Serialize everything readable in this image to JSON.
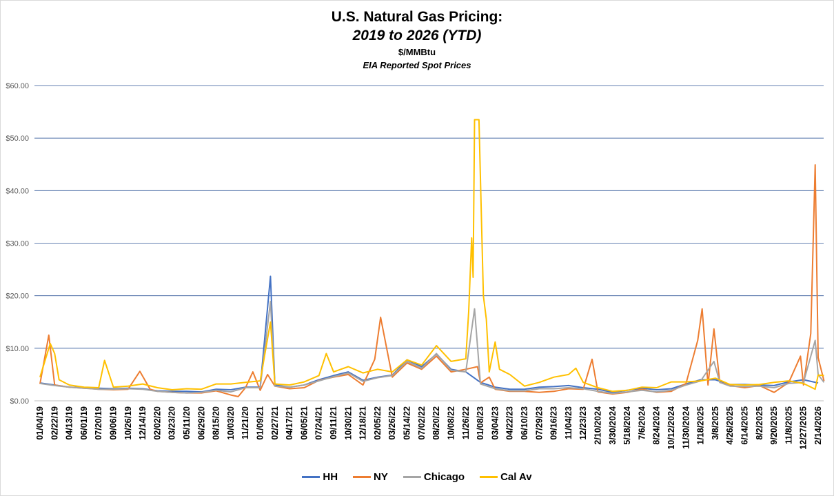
{
  "title": "U.S. Natural Gas Pricing:",
  "subtitle": "2019 to 2026 (YTD)",
  "unit": "$/MMBtu",
  "source": "EIA Reported Spot Prices",
  "chart_data": {
    "type": "line",
    "ylim": [
      0,
      60
    ],
    "yticks": [
      "$0.00",
      "$10.00",
      "$20.00",
      "$30.00",
      "$40.00",
      "$50.00",
      "$60.00"
    ],
    "grid": true,
    "legend_position": "bottom",
    "xticks": [
      "01/04/19",
      "02/22/19",
      "04/13/19",
      "06/01/19",
      "07/20/19",
      "09/06/19",
      "10/26/19",
      "12/14/19",
      "02/02/20",
      "03/23/20",
      "05/11/20",
      "06/29/20",
      "08/15/20",
      "10/03/20",
      "11/21/20",
      "01/09/21",
      "02/27/21",
      "04/17/21",
      "06/05/21",
      "07/24/21",
      "09/11/21",
      "10/30/21",
      "12/18/21",
      "02/05/22",
      "03/26/22",
      "05/14/22",
      "07/02/22",
      "08/20/22",
      "10/08/22",
      "11/26/22",
      "01/08/23",
      "03/04/23",
      "04/22/23",
      "06/10/23",
      "07/29/23",
      "09/16/23",
      "11/04/23",
      "12/23/23",
      "2/10/2024",
      "3/30/2024",
      "5/18/2024",
      "7/6/2024",
      "8/24/2024",
      "10/12/2024",
      "11/30/2024",
      "1/18/2025",
      "3/8/2025",
      "4/26/2025",
      "6/14/2025",
      "8/2/2025",
      "9/20/2025",
      "11/8/2025",
      "12/27/2025",
      "2/14/2026"
    ],
    "series": [
      {
        "name": "HH",
        "color": "#4472c4",
        "points": [
          [
            0,
            3.4
          ],
          [
            1,
            3.0
          ],
          [
            2,
            2.6
          ],
          [
            3,
            2.5
          ],
          [
            4,
            2.4
          ],
          [
            5,
            2.3
          ],
          [
            6,
            2.4
          ],
          [
            7,
            2.3
          ],
          [
            8,
            1.9
          ],
          [
            9,
            1.8
          ],
          [
            10,
            1.8
          ],
          [
            11,
            1.7
          ],
          [
            12,
            2.2
          ],
          [
            13,
            2.1
          ],
          [
            14,
            2.6
          ],
          [
            15,
            2.6
          ],
          [
            15.7,
            23.7
          ],
          [
            16,
            3.0
          ],
          [
            17,
            2.6
          ],
          [
            18,
            3.0
          ],
          [
            19,
            4.0
          ],
          [
            20,
            4.8
          ],
          [
            21,
            5.5
          ],
          [
            22,
            3.9
          ],
          [
            23,
            4.5
          ],
          [
            24,
            4.9
          ],
          [
            25,
            7.8
          ],
          [
            26,
            6.5
          ],
          [
            27,
            8.9
          ],
          [
            28,
            6.0
          ],
          [
            29,
            5.5
          ],
          [
            30,
            3.5
          ],
          [
            31,
            2.6
          ],
          [
            32,
            2.2
          ],
          [
            33,
            2.2
          ],
          [
            34,
            2.6
          ],
          [
            35,
            2.7
          ],
          [
            36,
            2.9
          ],
          [
            37,
            2.5
          ],
          [
            38,
            2.2
          ],
          [
            39,
            1.6
          ],
          [
            40,
            2.0
          ],
          [
            41,
            2.4
          ],
          [
            42,
            2.1
          ],
          [
            43,
            2.3
          ],
          [
            44,
            3.2
          ],
          [
            45,
            4.0
          ],
          [
            46,
            4.0
          ],
          [
            47,
            3.1
          ],
          [
            48,
            3.1
          ],
          [
            49,
            3.0
          ],
          [
            50,
            2.9
          ],
          [
            51,
            3.6
          ],
          [
            52,
            4.0
          ],
          [
            53,
            3.4
          ]
        ]
      },
      {
        "name": "NY",
        "color": "#ed7d31",
        "points": [
          [
            0,
            3.2
          ],
          [
            0.6,
            12.5
          ],
          [
            1,
            3.0
          ],
          [
            2,
            2.6
          ],
          [
            3,
            2.4
          ],
          [
            4,
            2.2
          ],
          [
            5,
            2.1
          ],
          [
            6,
            2.2
          ],
          [
            6.8,
            5.6
          ],
          [
            7.5,
            2.2
          ],
          [
            8,
            1.8
          ],
          [
            9,
            1.6
          ],
          [
            10,
            1.5
          ],
          [
            11,
            1.5
          ],
          [
            12,
            1.9
          ],
          [
            13,
            1.1
          ],
          [
            13.5,
            0.8
          ],
          [
            14,
            2.5
          ],
          [
            14.5,
            5.5
          ],
          [
            15,
            2.0
          ],
          [
            15.5,
            5.0
          ],
          [
            16,
            2.8
          ],
          [
            17,
            2.3
          ],
          [
            18,
            2.5
          ],
          [
            19,
            3.9
          ],
          [
            20,
            4.5
          ],
          [
            21,
            5.0
          ],
          [
            22,
            3.0
          ],
          [
            22.8,
            7.9
          ],
          [
            23.2,
            15.9
          ],
          [
            24,
            4.5
          ],
          [
            25,
            7.2
          ],
          [
            26,
            6.0
          ],
          [
            27,
            8.5
          ],
          [
            28,
            5.5
          ],
          [
            29,
            6.0
          ],
          [
            29.8,
            6.5
          ],
          [
            30,
            3.4
          ],
          [
            30.6,
            4.5
          ],
          [
            31,
            2.2
          ],
          [
            32,
            1.8
          ],
          [
            33,
            1.8
          ],
          [
            34,
            1.6
          ],
          [
            35,
            1.8
          ],
          [
            36,
            2.3
          ],
          [
            37,
            2.2
          ],
          [
            37.6,
            7.9
          ],
          [
            38,
            1.7
          ],
          [
            39,
            1.3
          ],
          [
            40,
            1.6
          ],
          [
            41,
            2.2
          ],
          [
            42,
            1.6
          ],
          [
            43,
            1.8
          ],
          [
            44,
            3.3
          ],
          [
            44.8,
            11.5
          ],
          [
            45.1,
            17.5
          ],
          [
            45.5,
            3.0
          ],
          [
            45.9,
            13.7
          ],
          [
            46.3,
            3.5
          ],
          [
            47,
            2.9
          ],
          [
            48,
            2.5
          ],
          [
            49,
            2.9
          ],
          [
            50,
            1.6
          ],
          [
            51,
            3.5
          ],
          [
            51.8,
            8.5
          ],
          [
            52,
            3.0
          ],
          [
            52.5,
            12.8
          ],
          [
            52.8,
            44.9
          ],
          [
            53,
            8.2
          ],
          [
            53.4,
            3.8
          ]
        ]
      },
      {
        "name": "Chicago",
        "color": "#a5a5a5",
        "points": [
          [
            0,
            3.3
          ],
          [
            1,
            2.9
          ],
          [
            2,
            2.6
          ],
          [
            3,
            2.4
          ],
          [
            4,
            2.2
          ],
          [
            5,
            2.2
          ],
          [
            6,
            2.3
          ],
          [
            7,
            2.2
          ],
          [
            8,
            1.8
          ],
          [
            9,
            1.6
          ],
          [
            10,
            1.5
          ],
          [
            11,
            1.6
          ],
          [
            12,
            2.0
          ],
          [
            13,
            1.7
          ],
          [
            14,
            2.5
          ],
          [
            15,
            2.5
          ],
          [
            15.7,
            18.9
          ],
          [
            16,
            2.8
          ],
          [
            17,
            2.6
          ],
          [
            18,
            3.0
          ],
          [
            19,
            3.8
          ],
          [
            20,
            4.6
          ],
          [
            21,
            5.3
          ],
          [
            22,
            3.7
          ],
          [
            23,
            4.4
          ],
          [
            24,
            4.8
          ],
          [
            25,
            7.5
          ],
          [
            26,
            6.2
          ],
          [
            27,
            9.0
          ],
          [
            28,
            5.8
          ],
          [
            29,
            5.5
          ],
          [
            29.6,
            17.5
          ],
          [
            30,
            3.2
          ],
          [
            31,
            2.3
          ],
          [
            32,
            1.9
          ],
          [
            33,
            1.9
          ],
          [
            34,
            2.3
          ],
          [
            35,
            2.3
          ],
          [
            36,
            2.5
          ],
          [
            37,
            2.3
          ],
          [
            38,
            1.8
          ],
          [
            39,
            1.4
          ],
          [
            40,
            1.7
          ],
          [
            41,
            2.0
          ],
          [
            42,
            1.7
          ],
          [
            43,
            2.0
          ],
          [
            44,
            3.0
          ],
          [
            45,
            3.8
          ],
          [
            45.9,
            7.5
          ],
          [
            46.3,
            3.5
          ],
          [
            47,
            2.8
          ],
          [
            48,
            2.7
          ],
          [
            49,
            2.8
          ],
          [
            50,
            2.5
          ],
          [
            51,
            3.3
          ],
          [
            52,
            3.5
          ],
          [
            52.8,
            11.5
          ],
          [
            53,
            5.0
          ],
          [
            53.4,
            3.5
          ]
        ]
      },
      {
        "name": "Cal Av",
        "color": "#ffc000",
        "points": [
          [
            0,
            4.5
          ],
          [
            0.7,
            10.9
          ],
          [
            1,
            9.0
          ],
          [
            1.3,
            4.0
          ],
          [
            2,
            3.0
          ],
          [
            3,
            2.6
          ],
          [
            4,
            2.5
          ],
          [
            4.4,
            7.7
          ],
          [
            5,
            2.6
          ],
          [
            6,
            2.8
          ],
          [
            7,
            3.2
          ],
          [
            8,
            2.5
          ],
          [
            9,
            2.1
          ],
          [
            10,
            2.3
          ],
          [
            11,
            2.2
          ],
          [
            12,
            3.2
          ],
          [
            13,
            3.2
          ],
          [
            14,
            3.5
          ],
          [
            15,
            3.8
          ],
          [
            15.7,
            15.0
          ],
          [
            16,
            3.2
          ],
          [
            17,
            3.0
          ],
          [
            18,
            3.6
          ],
          [
            19,
            4.8
          ],
          [
            19.5,
            9.0
          ],
          [
            20,
            5.5
          ],
          [
            21,
            6.5
          ],
          [
            22,
            5.3
          ],
          [
            23,
            6.0
          ],
          [
            24,
            5.5
          ],
          [
            25,
            7.8
          ],
          [
            26,
            6.8
          ],
          [
            27,
            10.5
          ],
          [
            28,
            7.5
          ],
          [
            29,
            8.0
          ],
          [
            29.2,
            17.0
          ],
          [
            29.4,
            31.0
          ],
          [
            29.5,
            23.5
          ],
          [
            29.6,
            53.5
          ],
          [
            29.9,
            53.5
          ],
          [
            30.2,
            20.0
          ],
          [
            30.4,
            15.5
          ],
          [
            30.6,
            5.5
          ],
          [
            31,
            11.2
          ],
          [
            31.3,
            6.0
          ],
          [
            32,
            5.0
          ],
          [
            33,
            2.8
          ],
          [
            34,
            3.5
          ],
          [
            35,
            4.5
          ],
          [
            36,
            5.0
          ],
          [
            36.5,
            6.2
          ],
          [
            37,
            3.5
          ],
          [
            38,
            2.5
          ],
          [
            39,
            1.8
          ],
          [
            40,
            2.0
          ],
          [
            41,
            2.6
          ],
          [
            42,
            2.5
          ],
          [
            43,
            3.6
          ],
          [
            44,
            3.6
          ],
          [
            45,
            3.8
          ],
          [
            46,
            4.3
          ],
          [
            47,
            3.1
          ],
          [
            48,
            3.0
          ],
          [
            49,
            3.1
          ],
          [
            50,
            3.5
          ],
          [
            51,
            3.8
          ],
          [
            52,
            3.3
          ],
          [
            52.8,
            2.2
          ],
          [
            53,
            4.9
          ],
          [
            53.4,
            4.8
          ]
        ]
      }
    ]
  }
}
